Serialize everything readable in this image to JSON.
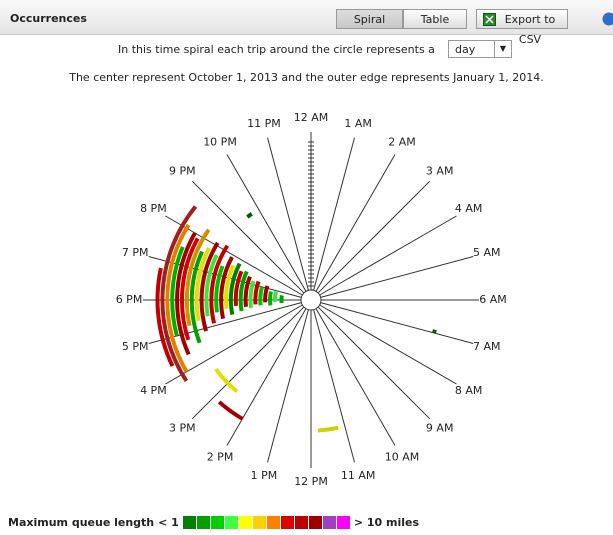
{
  "header": {
    "title": "Occurrences",
    "buttons": [
      "Spiral",
      "Table"
    ],
    "export": "Export to CSV"
  },
  "intro": {
    "text": "In this time spiral each trip around the circle represents a",
    "select": "day",
    "range_text": "The center represent October 1, 2013 and the outer edge represents January 1, 2014."
  },
  "spiral": {
    "hour_labels": [
      "12 AM",
      "1 AM",
      "2 AM",
      "3 AM",
      "4 AM",
      "5 AM",
      "6 AM",
      "7 AM",
      "8 AM",
      "9 AM",
      "10 AM",
      "11 AM",
      "12 PM",
      "1 PM",
      "2 PM",
      "3 PM",
      "4 PM",
      "5 PM",
      "6 PM",
      "7 PM",
      "8 PM",
      "9 PM",
      "10 PM",
      "11 PM"
    ],
    "occurrences": [
      {
        "start": 16.3,
        "end": 18.8,
        "day": 88,
        "color": "#c00000"
      },
      {
        "start": 15.8,
        "end": 20.6,
        "day": 85,
        "color": "#a02020"
      },
      {
        "start": 16.0,
        "end": 20.1,
        "day": 82,
        "color": "#e08000"
      },
      {
        "start": 17.0,
        "end": 19.5,
        "day": 79,
        "color": "#00b000"
      },
      {
        "start": 16.4,
        "end": 20.0,
        "day": 76,
        "color": "#a00000"
      },
      {
        "start": 16.8,
        "end": 19.9,
        "day": 73,
        "color": "#d00000"
      },
      {
        "start": 17.2,
        "end": 20.3,
        "day": 70,
        "color": "#d09000"
      },
      {
        "start": 16.6,
        "end": 19.6,
        "day": 67,
        "color": "#00a000"
      },
      {
        "start": 17.3,
        "end": 19.8,
        "day": 64,
        "color": "#e0e000"
      },
      {
        "start": 16.9,
        "end": 20.1,
        "day": 61,
        "color": "#a00000"
      },
      {
        "start": 17.4,
        "end": 19.7,
        "day": 58,
        "color": "#40e040"
      },
      {
        "start": 17.1,
        "end": 20.2,
        "day": 55,
        "color": "#c00000"
      },
      {
        "start": 17.5,
        "end": 19.4,
        "day": 52,
        "color": "#00c000"
      },
      {
        "start": 17.2,
        "end": 19.9,
        "day": 49,
        "color": "#a00000"
      },
      {
        "start": 17.6,
        "end": 19.6,
        "day": 46,
        "color": "#e0e000"
      },
      {
        "start": 17.3,
        "end": 19.8,
        "day": 43,
        "color": "#008000"
      },
      {
        "start": 17.7,
        "end": 19.5,
        "day": 40,
        "color": "#c00000"
      },
      {
        "start": 17.4,
        "end": 19.6,
        "day": 37,
        "color": "#00a000"
      },
      {
        "start": 17.6,
        "end": 19.4,
        "day": 34,
        "color": "#a00000"
      },
      {
        "start": 17.5,
        "end": 19.2,
        "day": 31,
        "color": "#40e040"
      },
      {
        "start": 17.7,
        "end": 19.3,
        "day": 28,
        "color": "#c00000"
      },
      {
        "start": 17.6,
        "end": 19.0,
        "day": 25,
        "color": "#00c000"
      },
      {
        "start": 17.8,
        "end": 19.2,
        "day": 22,
        "color": "#a00000"
      },
      {
        "start": 17.5,
        "end": 18.8,
        "day": 19,
        "color": "#00b000"
      },
      {
        "start": 17.8,
        "end": 18.9,
        "day": 16,
        "color": "#40e040"
      },
      {
        "start": 17.6,
        "end": 18.6,
        "day": 12,
        "color": "#00a000"
      },
      {
        "start": 14.6,
        "end": 15.6,
        "day": 66,
        "color": "#e0e000"
      },
      {
        "start": 14.0,
        "end": 14.8,
        "day": 78,
        "color": "#a00000"
      },
      {
        "start": 11.2,
        "end": 11.8,
        "day": 74,
        "color": "#d0d000"
      },
      {
        "start": 21.5,
        "end": 21.7,
        "day": 58,
        "color": "#006000"
      },
      {
        "start": 6.9,
        "end": 7.0,
        "day": 72,
        "color": "#006000"
      }
    ],
    "max_day": 92
  },
  "legend": {
    "title": "Maximum queue length",
    "low": "< 1",
    "high": "> 10 miles",
    "colors": [
      "#008000",
      "#00a000",
      "#00d000",
      "#40ff40",
      "#ffff00",
      "#ffd000",
      "#ff8000",
      "#e00000",
      "#c00000",
      "#a00000",
      "#a040c0",
      "#ff00ff"
    ]
  }
}
